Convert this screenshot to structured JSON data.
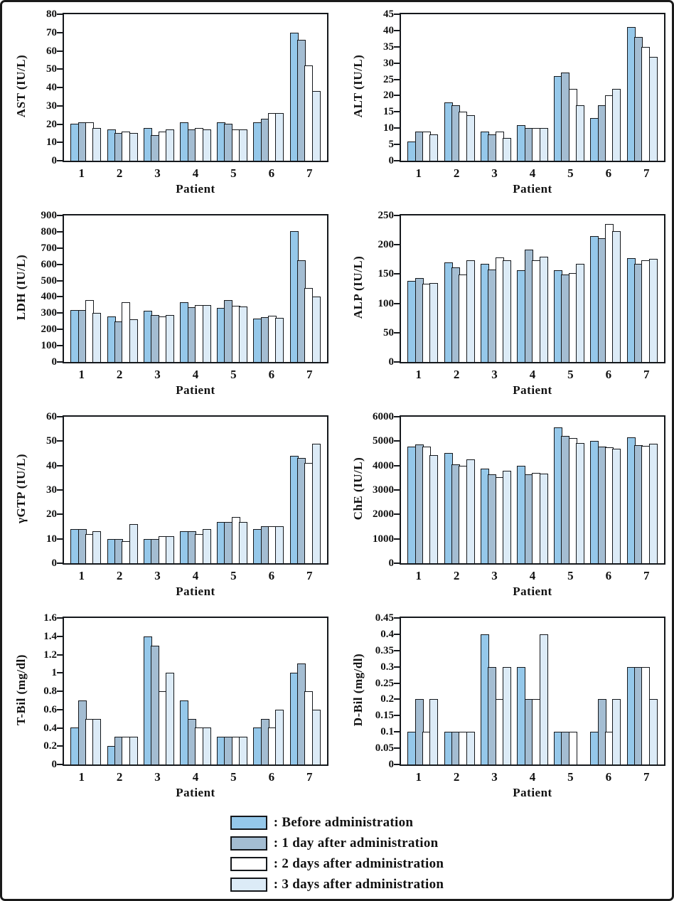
{
  "page": {
    "background": "#ffffff",
    "frame_color": "#1a1a1a"
  },
  "colors": {
    "bar_border": "#15181c",
    "series_fills": [
      "#95C8EA",
      "#A4BDD2",
      "#FFFFFF",
      "#DCEBF7"
    ]
  },
  "legend": {
    "items": [
      {
        "key": "before",
        "color": "#95C8EA",
        "label": ": Before administration"
      },
      {
        "key": "day1",
        "color": "#A4BDD2",
        "label": ": 1 day after administration"
      },
      {
        "key": "day2",
        "color": "#FFFFFF",
        "label": ": 2 days after administration"
      },
      {
        "key": "day3",
        "color": "#DCEBF7",
        "label": ": 3 days after administration"
      }
    ]
  },
  "chart_data": [
    {
      "id": "ast",
      "type": "bar",
      "title": "",
      "ylabel": "AST (IU/L)",
      "xlabel": "Patient",
      "ylim": [
        0,
        80
      ],
      "ytick_step": 10,
      "grid": false,
      "legend_position": "bottom-shared",
      "categories": [
        "1",
        "2",
        "3",
        "4",
        "5",
        "6",
        "7"
      ],
      "series": [
        {
          "name": "Before administration",
          "values": [
            20,
            17,
            18,
            21,
            21,
            21,
            70
          ]
        },
        {
          "name": "1 day after administration",
          "values": [
            21,
            15,
            14,
            17,
            20,
            23,
            66
          ]
        },
        {
          "name": "2 days after administration",
          "values": [
            21,
            16,
            16,
            18,
            17,
            26,
            52
          ]
        },
        {
          "name": "3 days after administration",
          "values": [
            18,
            15,
            17,
            17,
            17,
            26,
            38
          ]
        }
      ]
    },
    {
      "id": "alt",
      "type": "bar",
      "title": "",
      "ylabel": "ALT (IU/L)",
      "xlabel": "Patient",
      "ylim": [
        0,
        45
      ],
      "ytick_step": 5,
      "grid": false,
      "legend_position": "bottom-shared",
      "categories": [
        "1",
        "2",
        "3",
        "4",
        "5",
        "6",
        "7"
      ],
      "series": [
        {
          "name": "Before administration",
          "values": [
            6,
            18,
            9,
            11,
            26,
            13,
            41
          ]
        },
        {
          "name": "1 day after administration",
          "values": [
            9,
            17,
            8,
            10,
            27,
            17,
            38
          ]
        },
        {
          "name": "2 days after administration",
          "values": [
            9,
            15,
            9,
            10,
            22,
            20,
            35
          ]
        },
        {
          "name": "3 days after administration",
          "values": [
            8,
            14,
            7,
            10,
            17,
            22,
            32
          ]
        }
      ]
    },
    {
      "id": "ldh",
      "type": "bar",
      "title": "",
      "ylabel": "LDH (IU/L)",
      "xlabel": "Patient",
      "ylim": [
        0,
        900
      ],
      "ytick_step": 100,
      "grid": false,
      "legend_position": "bottom-shared",
      "categories": [
        "1",
        "2",
        "3",
        "4",
        "5",
        "6",
        "7"
      ],
      "series": [
        {
          "name": "Before administration",
          "values": [
            320,
            280,
            315,
            365,
            330,
            265,
            805
          ]
        },
        {
          "name": "1 day after administration",
          "values": [
            320,
            250,
            290,
            335,
            380,
            275,
            625
          ]
        },
        {
          "name": "2 days after administration",
          "values": [
            380,
            365,
            280,
            350,
            345,
            285,
            455
          ]
        },
        {
          "name": "3 days after administration",
          "values": [
            300,
            260,
            290,
            350,
            340,
            270,
            400
          ]
        }
      ]
    },
    {
      "id": "alp",
      "type": "bar",
      "title": "",
      "ylabel": "ALP (IU/L)",
      "xlabel": "Patient",
      "ylim": [
        0,
        250
      ],
      "ytick_step": 50,
      "grid": false,
      "legend_position": "bottom-shared",
      "categories": [
        "1",
        "2",
        "3",
        "4",
        "5",
        "6",
        "7"
      ],
      "series": [
        {
          "name": "Before administration",
          "values": [
            138,
            170,
            168,
            157,
            157,
            215,
            177
          ]
        },
        {
          "name": "1 day after administration",
          "values": [
            143,
            161,
            158,
            192,
            149,
            211,
            167
          ]
        },
        {
          "name": "2 days after administration",
          "values": [
            134,
            149,
            179,
            174,
            152,
            235,
            173
          ]
        },
        {
          "name": "3 days after administration",
          "values": [
            135,
            174,
            173,
            180,
            167,
            223,
            176
          ]
        }
      ]
    },
    {
      "id": "ggtp",
      "type": "bar",
      "title": "",
      "ylabel": "γGTP (IU/L)",
      "xlabel": "Patient",
      "ylim": [
        0,
        60
      ],
      "ytick_step": 10,
      "grid": false,
      "legend_position": "bottom-shared",
      "categories": [
        "1",
        "2",
        "3",
        "4",
        "5",
        "6",
        "7"
      ],
      "series": [
        {
          "name": "Before administration",
          "values": [
            14,
            10,
            10,
            13,
            17,
            14,
            44
          ]
        },
        {
          "name": "1 day after administration",
          "values": [
            14,
            10,
            10,
            13,
            17,
            15,
            43
          ]
        },
        {
          "name": "2 days after administration",
          "values": [
            12,
            9,
            11,
            12,
            19,
            15,
            41
          ]
        },
        {
          "name": "3 days after administration",
          "values": [
            13,
            16,
            11,
            14,
            17,
            15,
            49
          ]
        }
      ]
    },
    {
      "id": "che",
      "type": "bar",
      "title": "",
      "ylabel": "ChE (IU/L)",
      "xlabel": "Patient",
      "ylim": [
        0,
        6000
      ],
      "ytick_step": 1000,
      "grid": false,
      "legend_position": "bottom-shared",
      "categories": [
        "1",
        "2",
        "3",
        "4",
        "5",
        "6",
        "7"
      ],
      "series": [
        {
          "name": "Before administration",
          "values": [
            4780,
            4500,
            3880,
            4000,
            5550,
            5000,
            5150
          ]
        },
        {
          "name": "1 day after administration",
          "values": [
            4850,
            4050,
            3650,
            3630,
            5220,
            4770,
            4830
          ]
        },
        {
          "name": "2 days after administration",
          "values": [
            4780,
            4000,
            3530,
            3700,
            5130,
            4750,
            4800
          ]
        },
        {
          "name": "3 days after administration",
          "values": [
            4430,
            4250,
            3780,
            3680,
            4930,
            4700,
            4900
          ]
        }
      ]
    },
    {
      "id": "tbil",
      "type": "bar",
      "title": "",
      "ylabel": "T-Bil (mg/dl)",
      "xlabel": "Patient",
      "ylim": [
        0,
        1.6
      ],
      "ytick_step": 0.2,
      "grid": false,
      "legend_position": "bottom-shared",
      "categories": [
        "1",
        "2",
        "3",
        "4",
        "5",
        "6",
        "7"
      ],
      "series": [
        {
          "name": "Before administration",
          "values": [
            0.4,
            0.2,
            1.4,
            0.7,
            0.3,
            0.4,
            1.0
          ]
        },
        {
          "name": "1 day after administration",
          "values": [
            0.7,
            0.3,
            1.3,
            0.5,
            0.3,
            0.5,
            1.1
          ]
        },
        {
          "name": "2 days after administration",
          "values": [
            0.5,
            0.3,
            0.8,
            0.4,
            0.3,
            0.4,
            0.8
          ]
        },
        {
          "name": "3 days after administration",
          "values": [
            0.5,
            0.3,
            1.0,
            0.4,
            0.3,
            0.6,
            0.6
          ]
        }
      ]
    },
    {
      "id": "dbil",
      "type": "bar",
      "title": "",
      "ylabel": "D-Bil (mg/dl)",
      "xlabel": "Patient",
      "ylim": [
        0,
        0.45
      ],
      "ytick_step": 0.05,
      "grid": false,
      "legend_position": "bottom-shared",
      "categories": [
        "1",
        "2",
        "3",
        "4",
        "5",
        "6",
        "7"
      ],
      "series": [
        {
          "name": "Before administration",
          "values": [
            0.1,
            0.1,
            0.4,
            0.3,
            0.1,
            0.1,
            0.3
          ]
        },
        {
          "name": "1 day after administration",
          "values": [
            0.2,
            0.1,
            0.3,
            0.2,
            0.1,
            0.2,
            0.3
          ]
        },
        {
          "name": "2 days after administration",
          "values": [
            0.1,
            0.1,
            0.2,
            0.2,
            0.1,
            0.1,
            0.3
          ]
        },
        {
          "name": "3 days after administration",
          "values": [
            0.2,
            0.1,
            0.3,
            0.4,
            0,
            0.2,
            0.2
          ]
        }
      ]
    }
  ]
}
